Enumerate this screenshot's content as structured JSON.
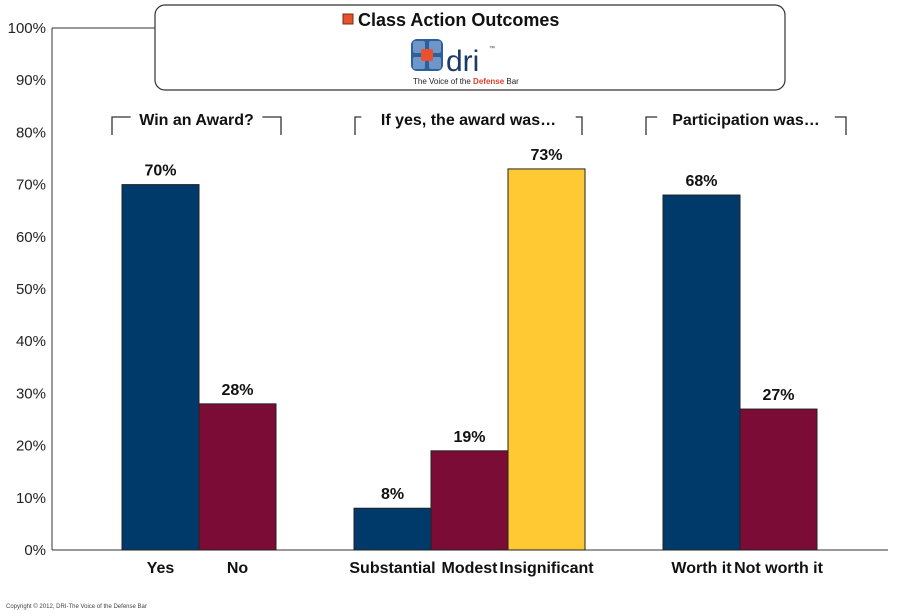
{
  "chart_data": {
    "type": "bar",
    "title": "Class Action Outcomes",
    "ylim": [
      0,
      100
    ],
    "yticks": [
      "0%",
      "10%",
      "20%",
      "30%",
      "40%",
      "50%",
      "60%",
      "70%",
      "80%",
      "90%",
      "100%"
    ],
    "groups": [
      {
        "label": "Win an Award?",
        "bars": [
          {
            "category": "Yes",
            "value": 70,
            "label": "70%",
            "color": "#003a6b"
          },
          {
            "category": "No",
            "value": 28,
            "label": "28%",
            "color": "#7a0c36"
          }
        ]
      },
      {
        "label": "If yes, the award was…",
        "bars": [
          {
            "category": "Substantial",
            "value": 8,
            "label": "8%",
            "color": "#003a6b"
          },
          {
            "category": "Modest",
            "value": 19,
            "label": "19%",
            "color": "#7a0c36"
          },
          {
            "category": "Insignificant",
            "value": 73,
            "label": "73%",
            "color": "#ffc933"
          }
        ]
      },
      {
        "label": "Participation was…",
        "bars": [
          {
            "category": "Worth it",
            "value": 68,
            "label": "68%",
            "color": "#003a6b"
          },
          {
            "category": "Not worth it",
            "value": 27,
            "label": "27%",
            "color": "#7a0c36"
          }
        ]
      }
    ]
  },
  "logo": {
    "text": "dri",
    "trademark": "™",
    "tagline_pre": "The Voice of the ",
    "tagline_emph": "Defense",
    "tagline_post": " Bar"
  },
  "colors": {
    "accent": "#e8502e",
    "navy": "#003a6b",
    "maroon": "#7a0c36",
    "gold": "#ffc933"
  },
  "copyright": "Copyright © 2012, DRI-The Voice of the Defense Bar"
}
